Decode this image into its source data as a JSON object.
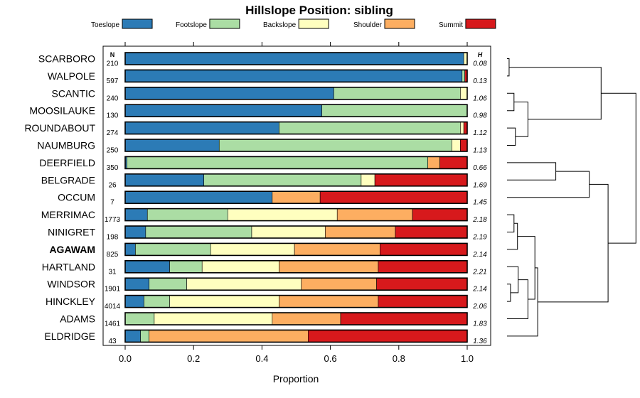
{
  "colors": {
    "Toeslope": "#2c7bb6",
    "Footslope": "#abdda4",
    "Backslope": "#ffffbf",
    "Shoulder": "#fdae61",
    "Summit": "#d7191c"
  },
  "chart_data": {
    "type": "bar",
    "orientation": "horizontal",
    "stacked": true,
    "title": "Hillslope Position: sibling",
    "xlabel": "Proportion",
    "ylabel": "",
    "xlim": [
      0,
      1
    ],
    "xticks": [
      "0.0",
      "0.2",
      "0.4",
      "0.6",
      "0.8",
      "1.0"
    ],
    "legend_position": "top",
    "legend": [
      "Toeslope",
      "Footslope",
      "Backslope",
      "Shoulder",
      "Summit"
    ],
    "n_header": "N",
    "h_header": "H",
    "rows": [
      {
        "name": "SCARBORO",
        "n": "210",
        "h": "0.08",
        "bold": false,
        "values": [
          0.99,
          0.0,
          0.01,
          0.0,
          0.0
        ]
      },
      {
        "name": "WALPOLE",
        "n": "597",
        "h": "0.13",
        "bold": false,
        "values": [
          0.985,
          0.008,
          0.0,
          0.0,
          0.007
        ]
      },
      {
        "name": "SCANTIC",
        "n": "240",
        "h": "1.06",
        "bold": false,
        "values": [
          0.61,
          0.37,
          0.02,
          0.0,
          0.0
        ]
      },
      {
        "name": "MOOSILAUKE",
        "n": "130",
        "h": "0.98",
        "bold": false,
        "values": [
          0.575,
          0.425,
          0.0,
          0.0,
          0.0
        ]
      },
      {
        "name": "ROUNDABOUT",
        "n": "274",
        "h": "1.12",
        "bold": false,
        "values": [
          0.45,
          0.53,
          0.01,
          0.0,
          0.01
        ]
      },
      {
        "name": "NAUMBURG",
        "n": "250",
        "h": "1.13",
        "bold": false,
        "values": [
          0.275,
          0.68,
          0.025,
          0.0,
          0.02
        ]
      },
      {
        "name": "DEERFIELD",
        "n": "350",
        "h": "0.66",
        "bold": false,
        "values": [
          0.005,
          0.88,
          0.0,
          0.035,
          0.08
        ]
      },
      {
        "name": "BELGRADE",
        "n": "26",
        "h": "1.69",
        "bold": false,
        "values": [
          0.23,
          0.46,
          0.04,
          0.0,
          0.27
        ]
      },
      {
        "name": "OCCUM",
        "n": "7",
        "h": "1.45",
        "bold": false,
        "values": [
          0.43,
          0.0,
          0.0,
          0.14,
          0.43
        ]
      },
      {
        "name": "MERRIMAC",
        "n": "1773",
        "h": "2.18",
        "bold": false,
        "values": [
          0.065,
          0.235,
          0.32,
          0.22,
          0.16
        ]
      },
      {
        "name": "NINIGRET",
        "n": "198",
        "h": "2.19",
        "bold": false,
        "values": [
          0.06,
          0.31,
          0.215,
          0.205,
          0.21
        ]
      },
      {
        "name": "AGAWAM",
        "n": "825",
        "h": "2.14",
        "bold": true,
        "values": [
          0.03,
          0.22,
          0.245,
          0.25,
          0.255
        ]
      },
      {
        "name": "HARTLAND",
        "n": "31",
        "h": "2.21",
        "bold": false,
        "values": [
          0.13,
          0.095,
          0.225,
          0.29,
          0.26
        ]
      },
      {
        "name": "WINDSOR",
        "n": "1901",
        "h": "2.14",
        "bold": false,
        "values": [
          0.07,
          0.11,
          0.335,
          0.22,
          0.265
        ]
      },
      {
        "name": "HINCKLEY",
        "n": "4014",
        "h": "2.06",
        "bold": false,
        "values": [
          0.055,
          0.075,
          0.32,
          0.29,
          0.26
        ]
      },
      {
        "name": "ADAMS",
        "n": "1461",
        "h": "1.83",
        "bold": false,
        "values": [
          0.0,
          0.085,
          0.345,
          0.2,
          0.37
        ]
      },
      {
        "name": "ELDRIDGE",
        "n": "43",
        "h": "1.36",
        "bold": false,
        "values": [
          0.045,
          0.025,
          0.0,
          0.465,
          0.465
        ]
      }
    ],
    "dendrogram": {
      "leaf_order": [
        "SCARBORO",
        "WALPOLE",
        "SCANTIC",
        "MOOSILAUKE",
        "ROUNDABOUT",
        "NAUMBURG",
        "DEERFIELD",
        "BELGRADE",
        "OCCUM",
        "MERRIMAC",
        "NINIGRET",
        "AGAWAM",
        "HARTLAND",
        "WINDSOR",
        "HINCKLEY",
        "ADAMS",
        "ELDRIDGE"
      ],
      "merges": [
        {
          "a": 0,
          "b": 1,
          "height": 0.03
        },
        {
          "a": 2,
          "b": 3,
          "height": 0.1
        },
        {
          "a": 4,
          "b": 5,
          "height": 0.12
        },
        {
          "a": -2,
          "b": -3,
          "height": 0.3
        },
        {
          "a": -1,
          "b": -4,
          "height": 1.35
        },
        {
          "a": 6,
          "b": 7,
          "height": 0.7
        },
        {
          "a": -6,
          "b": 8,
          "height": 1.18
        },
        {
          "a": 9,
          "b": 10,
          "height": 0.1
        },
        {
          "a": -8,
          "b": 11,
          "height": 0.15
        },
        {
          "a": 13,
          "b": 14,
          "height": 0.05
        },
        {
          "a": -10,
          "b": 12,
          "height": 0.16
        },
        {
          "a": -11,
          "b": 15,
          "height": 0.3
        },
        {
          "a": -9,
          "b": -12,
          "height": 0.4
        },
        {
          "a": -13,
          "b": 16,
          "height": 0.44
        },
        {
          "a": -7,
          "b": -14,
          "height": 1.45
        },
        {
          "a": -5,
          "b": -15,
          "height": 1.85
        }
      ]
    }
  }
}
